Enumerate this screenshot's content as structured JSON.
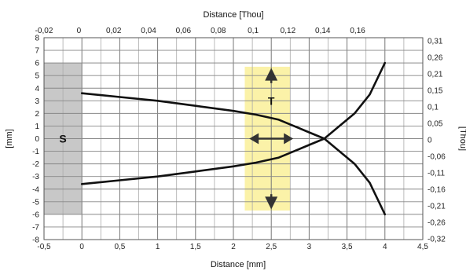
{
  "chart_data": {
    "type": "line",
    "title": "",
    "xlabel": "Distance [mm]",
    "ylabel": "[mm]",
    "x2label": "Distance [Thou]",
    "y2label": "[Thou]",
    "xlim": [
      -0.5,
      4.5
    ],
    "ylim": [
      -8,
      8
    ],
    "x2lim": [
      -0.02,
      0.18
    ],
    "x_ticks": [
      "-0,5",
      "0",
      "0,5",
      "1",
      "1,5",
      "2",
      "2,5",
      "3",
      "3,5",
      "4",
      "4,5"
    ],
    "y_ticks": [
      "-8",
      "-7",
      "-6",
      "-5",
      "-4",
      "-3",
      "-2",
      "-1",
      "0",
      "1",
      "2",
      "3",
      "4",
      "5",
      "6",
      "7",
      "8"
    ],
    "x2_ticks": [
      "-0,02",
      "0",
      "0,02",
      "0,04",
      "0,06",
      "0,08",
      "0,1",
      "0,12",
      "0,14",
      "0,16"
    ],
    "y2_ticks": [
      "-0,32",
      "-0,26",
      "-0,21",
      "-0,16",
      "-0,11",
      "-0,06",
      "0",
      "0,05",
      "0,1",
      "0,15",
      "0,21",
      "0,26",
      "0,31"
    ],
    "grid": true,
    "shaded_region": {
      "label": "S",
      "x": [
        -0.5,
        0
      ],
      "y": [
        -6,
        6
      ],
      "color": "#c8c8c8"
    },
    "highlight_region": {
      "label": "T",
      "x": [
        2.15,
        2.75
      ],
      "y": [
        -5.7,
        5.7
      ],
      "color": "#fbf2a8"
    },
    "series": [
      {
        "x": [
          0,
          0.5,
          1,
          1.5,
          2,
          2.3,
          2.6,
          2.8,
          3.0,
          3.2,
          3.4,
          3.6,
          3.8,
          4.0
        ],
        "y": [
          3.6,
          3.3,
          3.0,
          2.6,
          2.2,
          1.9,
          1.5,
          1.0,
          0.5,
          0.0,
          -1.0,
          -2.0,
          -3.5,
          -6.0
        ]
      },
      {
        "x": [
          0,
          0.5,
          1,
          1.5,
          2,
          2.3,
          2.6,
          2.8,
          3.0,
          3.2,
          3.4,
          3.6,
          3.8,
          4.0
        ],
        "y": [
          -3.6,
          -3.3,
          -3.0,
          -2.6,
          -2.2,
          -1.9,
          -1.5,
          -1.0,
          -0.5,
          0.0,
          1.0,
          2.0,
          3.5,
          6.0
        ]
      }
    ]
  }
}
